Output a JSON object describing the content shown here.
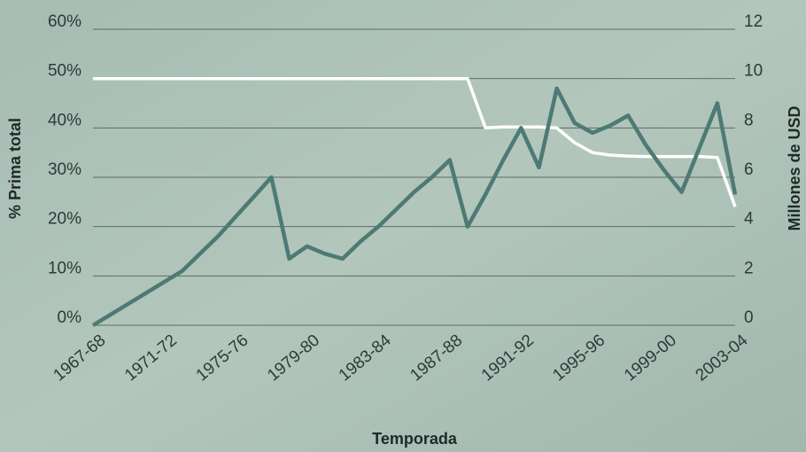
{
  "chart_data": {
    "type": "line",
    "x_label": "Temporada",
    "y_label": "% Prima total",
    "y2_label": "Millones de USD",
    "categories": [
      "1967-68",
      null,
      null,
      null,
      "1971-72",
      null,
      null,
      null,
      "1975-76",
      null,
      null,
      null,
      "1979-80",
      null,
      null,
      null,
      "1983-84",
      null,
      null,
      null,
      "1987-88",
      null,
      null,
      null,
      "1991-92",
      null,
      null,
      null,
      "1995-96",
      null,
      null,
      null,
      "1999-00",
      null,
      null,
      null,
      "2003-04"
    ],
    "series": [
      {
        "color": "#ffffff",
        "axis": "y",
        "values": [
          50,
          50,
          50,
          50,
          50,
          50,
          50,
          50,
          50,
          50,
          50,
          50,
          50,
          50,
          50,
          50,
          50,
          50,
          50,
          50,
          50,
          50,
          40,
          40.2,
          40.2,
          40.2,
          40,
          37,
          35,
          34.5,
          34.3,
          34.2,
          34.2,
          34.2,
          34.2,
          34,
          24
        ]
      },
      {
        "color": "#4d7a74",
        "axis": "y2",
        "values": [
          0,
          0.44,
          0.88,
          1.32,
          1.76,
          2.2,
          2.9,
          3.6,
          4.4,
          5.2,
          6.0,
          2.7,
          3.2,
          2.9,
          2.7,
          3.4,
          4.0,
          4.7,
          5.4,
          6.0,
          6.7,
          4.0,
          5.3,
          6.7,
          8.0,
          6.4,
          9.6,
          8.2,
          7.8,
          8.1,
          8.5,
          7.3,
          6.3,
          5.4,
          7.2,
          9.0,
          5.3
        ]
      }
    ],
    "ylim": [
      0,
      60
    ],
    "yticks": [
      {
        "value": 0,
        "label": "0%"
      },
      {
        "value": 10,
        "label": "10%"
      },
      {
        "value": 20,
        "label": "20%"
      },
      {
        "value": 30,
        "label": "30%"
      },
      {
        "value": 40,
        "label": "40%"
      },
      {
        "value": 50,
        "label": "50%"
      },
      {
        "value": 60,
        "label": "60%"
      }
    ],
    "y2lim": [
      0,
      12
    ],
    "y2ticks": [
      0,
      2,
      4,
      6,
      8,
      10,
      12
    ],
    "grid": true
  }
}
